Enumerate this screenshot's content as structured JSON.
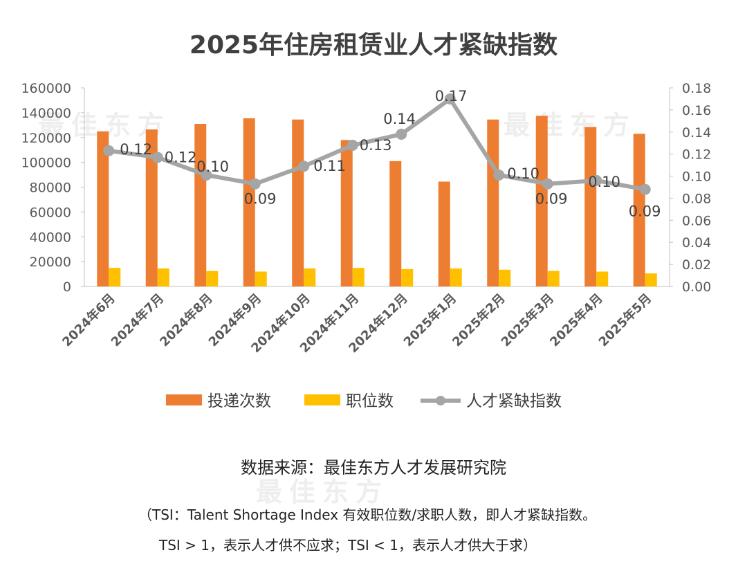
{
  "chart_data": {
    "type": "bar+line",
    "title": "2025年住房租赁业人才紧缺指数",
    "categories": [
      "2024年6月",
      "2024年7月",
      "2024年8月",
      "2024年9月",
      "2024年10月",
      "2024年11月",
      "2024年12月",
      "2025年1月",
      "2025年2月",
      "2025年3月",
      "2025年4月",
      "2025年5月"
    ],
    "series": [
      {
        "name": "投递次数",
        "type": "bar",
        "axis": "left",
        "color": "#ED7D31",
        "values": [
          125000,
          126500,
          131000,
          135500,
          134500,
          118000,
          101000,
          84500,
          134500,
          137500,
          128500,
          123000
        ]
      },
      {
        "name": "职位数",
        "type": "bar",
        "axis": "left",
        "color": "#FFC000",
        "values": [
          15000,
          14500,
          12500,
          12000,
          14500,
          15000,
          14000,
          14500,
          13500,
          12500,
          12000,
          10500
        ]
      },
      {
        "name": "人才紧缺指数",
        "type": "line",
        "axis": "right",
        "color": "#A5A5A5",
        "values": [
          0.123,
          0.117,
          0.101,
          0.093,
          0.109,
          0.128,
          0.138,
          0.17,
          0.101,
          0.093,
          0.096,
          0.088
        ],
        "labels": [
          "0.12",
          "0.12",
          "0.10",
          "0.09",
          "0.11",
          "0.13",
          "0.14",
          "0.17",
          "0.10",
          "0.09",
          "0.10",
          "0.09"
        ]
      }
    ],
    "left_axis": {
      "ylim": [
        0,
        160000
      ],
      "ticks": [
        "0",
        "20000",
        "40000",
        "60000",
        "80000",
        "100000",
        "120000",
        "140000",
        "160000"
      ]
    },
    "right_axis": {
      "ylim": [
        0,
        0.18
      ],
      "ticks": [
        "0.00",
        "0.02",
        "0.04",
        "0.06",
        "0.08",
        "0.10",
        "0.12",
        "0.14",
        "0.16",
        "0.18"
      ]
    },
    "legend": "bottom",
    "grid": false
  },
  "watermark": "最佳东方 veryeast.cn",
  "source": "数据来源：最佳东方人才发展研究院",
  "note_line1": "（TSI：Talent Shortage Index 有效职位数/求职人数，即人才紧缺指数。",
  "note_line2": "TSI > 1，表示人才供不应求；TSI < 1，表示人才供大于求）"
}
